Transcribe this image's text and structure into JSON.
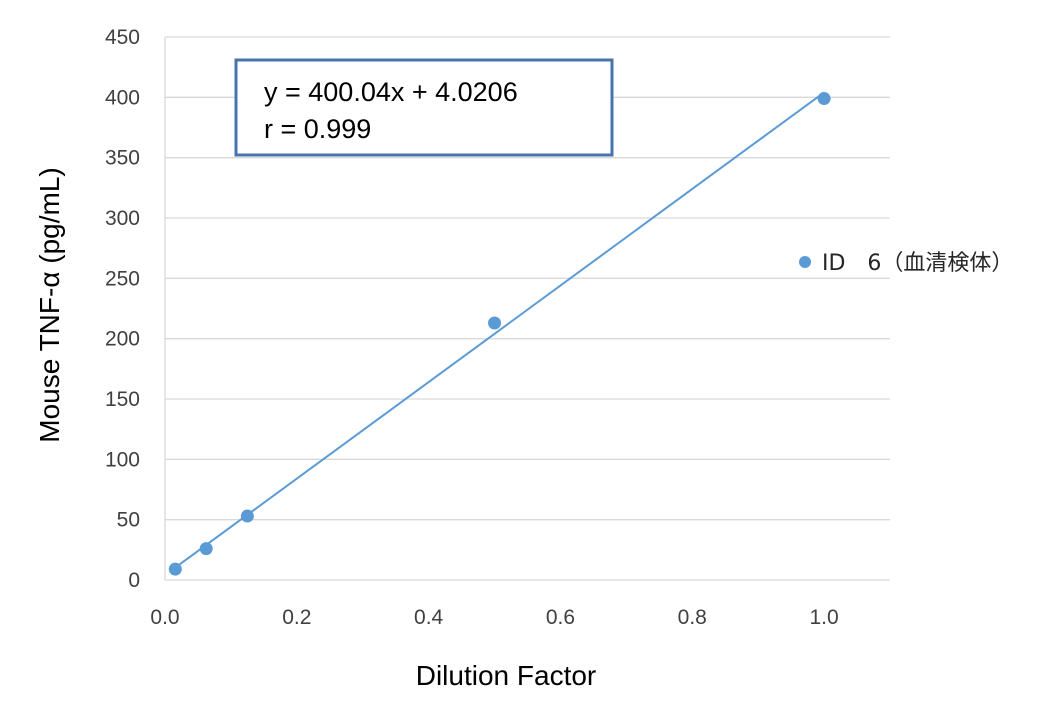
{
  "chart_data": {
    "type": "scatter",
    "xlabel": "Dilution Factor",
    "ylabel": "Mouse TNF-α (pg/mL)",
    "xlim": [
      0,
      1.1
    ],
    "ylim": [
      0,
      450
    ],
    "x_ticks": [
      "0.0",
      "0.2",
      "0.4",
      "0.6",
      "0.8",
      "1.0"
    ],
    "x_tick_values": [
      0,
      0.2,
      0.4,
      0.6,
      0.8,
      1.0
    ],
    "y_ticks": [
      "0",
      "50",
      "100",
      "150",
      "200",
      "250",
      "300",
      "350",
      "400",
      "450"
    ],
    "y_tick_values": [
      0,
      50,
      100,
      150,
      200,
      250,
      300,
      350,
      400,
      450
    ],
    "grid": "horizontal",
    "legend_position": "right",
    "series": [
      {
        "name": "ID　6（血清検体）",
        "color": "#5b9bd5",
        "x": [
          0.0156,
          0.0625,
          0.125,
          0.5,
          1.0
        ],
        "y": [
          9,
          26,
          53,
          213,
          399
        ]
      }
    ],
    "trendline": {
      "slope": 400.04,
      "intercept": 4.0206,
      "x_range": [
        0.0156,
        1.0
      ],
      "color": "#5b9bd5"
    },
    "annotation": {
      "line1": "y = 400.04x + 4.0206",
      "line2": "r = 0.999",
      "border_color": "#4a72b0"
    }
  }
}
